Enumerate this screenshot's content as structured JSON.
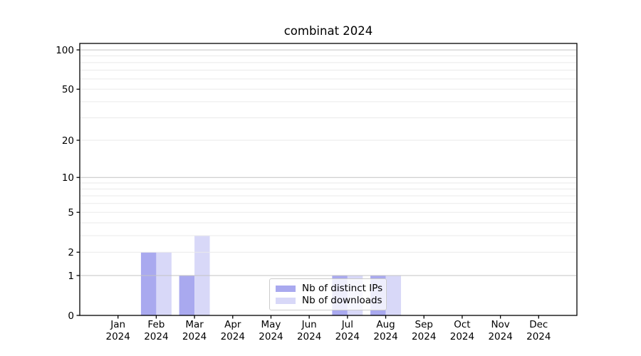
{
  "colors": {
    "bar_distinct_ips": "#a9a9ef",
    "bar_downloads": "#d8d8f8",
    "grid_major": "#c3c3c3",
    "grid_minor": "#eaeaea",
    "axis": "#000000",
    "tick_label": "#000000",
    "legend_border": "#cccccc",
    "background": "#ffffff"
  },
  "chart_data": {
    "type": "bar",
    "title": "combinat 2024",
    "categories": [
      "Jan",
      "Feb",
      "Mar",
      "Apr",
      "May",
      "Jun",
      "Jul",
      "Aug",
      "Sep",
      "Oct",
      "Nov",
      "Dec"
    ],
    "year_label": "2024",
    "series": [
      {
        "name": "Nb of distinct IPs",
        "color": "#a9a9ef",
        "values": [
          0,
          2,
          1,
          0,
          0,
          0,
          1,
          1,
          0,
          0,
          0,
          0
        ]
      },
      {
        "name": "Nb of downloads",
        "color": "#d8d8f8",
        "values": [
          0,
          2,
          3,
          0,
          0,
          0,
          1,
          1,
          0,
          0,
          0,
          0
        ]
      }
    ],
    "xlabel": "",
    "ylabel": "",
    "y_ticks": [
      0,
      1,
      2,
      5,
      10,
      20,
      50,
      100
    ],
    "y_scale": "log10(1+x)",
    "ylim": [
      0,
      112
    ],
    "grid": {
      "major": [
        1,
        10,
        100
      ],
      "minor": [
        2,
        3,
        4,
        5,
        6,
        7,
        8,
        9,
        20,
        30,
        40,
        50,
        60,
        70,
        80,
        90
      ]
    },
    "legend_position": "lower center",
    "bar_group": "paired side-by-side, dark left / light right"
  }
}
